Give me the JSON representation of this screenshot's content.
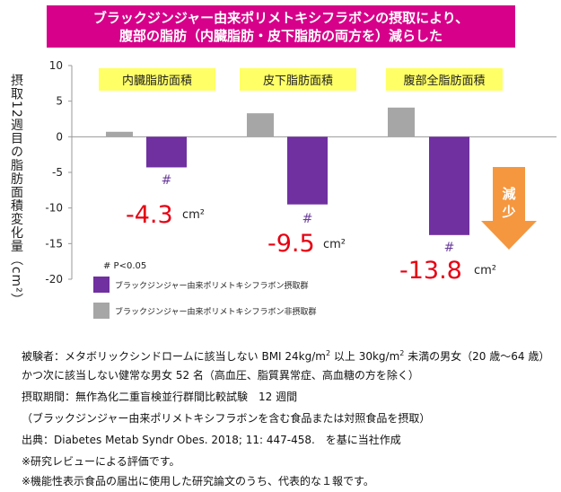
{
  "header": {
    "line1": "ブラックジンジャー由来ポリメトキシフラボンの摂取により、",
    "line2": "腹部の脂肪（内臓脂肪・皮下脂肪の両方を）減らした"
  },
  "chart_data": {
    "type": "bar",
    "ylabel": "摂取12週目の脂肪面積変化量（cm²）",
    "ylim": [
      -20,
      10
    ],
    "yticks": [
      10,
      5,
      0,
      -5,
      -10,
      -15,
      -20
    ],
    "categories": [
      "内臓脂肪面積",
      "皮下脂肪面積",
      "腹部全脂肪面積"
    ],
    "series": [
      {
        "name": "ブラックジンジャー由来ポリメトキシフラボン非摂取群",
        "color": "#a6a6a6",
        "values": [
          0.7,
          3.3,
          4.1
        ]
      },
      {
        "name": "ブラックジンジャー由来ポリメトキシフラボン摂取群",
        "color": "#7030a0",
        "values": [
          -4.3,
          -9.5,
          -13.8
        ]
      }
    ],
    "significance_mark": "#",
    "significance_note": "# P<0.05",
    "value_labels": [
      {
        "value": "-4.3",
        "unit": "cm²"
      },
      {
        "value": "-9.5",
        "unit": "cm²"
      },
      {
        "value": "-13.8",
        "unit": "cm²"
      }
    ],
    "decrease_arrow": {
      "text": "減少",
      "color": "#f5973f"
    },
    "category_label_bg": "#ffff66",
    "value_label_color": "#e60012"
  },
  "footnotes": {
    "line1_pre": "被験者：メタボリックシンドロームに該当しない BMI 24kg/m",
    "line1_mid": " 以上 30kg/m",
    "line1_post": " 未満の男女（20 歳～64 歳）",
    "sup": "2",
    "line2": "かつ次に該当しない健常な男女 52 名（高血圧、脂質異常症、高血糖の方を除く）",
    "line3": "摂取期間：無作為化二重盲検並行群間比較試験　12 週間",
    "line4": "（ブラックジンジャー由来ポリメトキシフラボンを含む食品または対照食品を摂取）",
    "line5": "出典：Diabetes Metab Syndr Obes. 2018; 11: 447-458.　を基に当社作成",
    "line6": "※研究レビューによる評価です。",
    "line7": "※機能性表示食品の届出に使用した研究論文のうち、代表的な１報です。"
  }
}
